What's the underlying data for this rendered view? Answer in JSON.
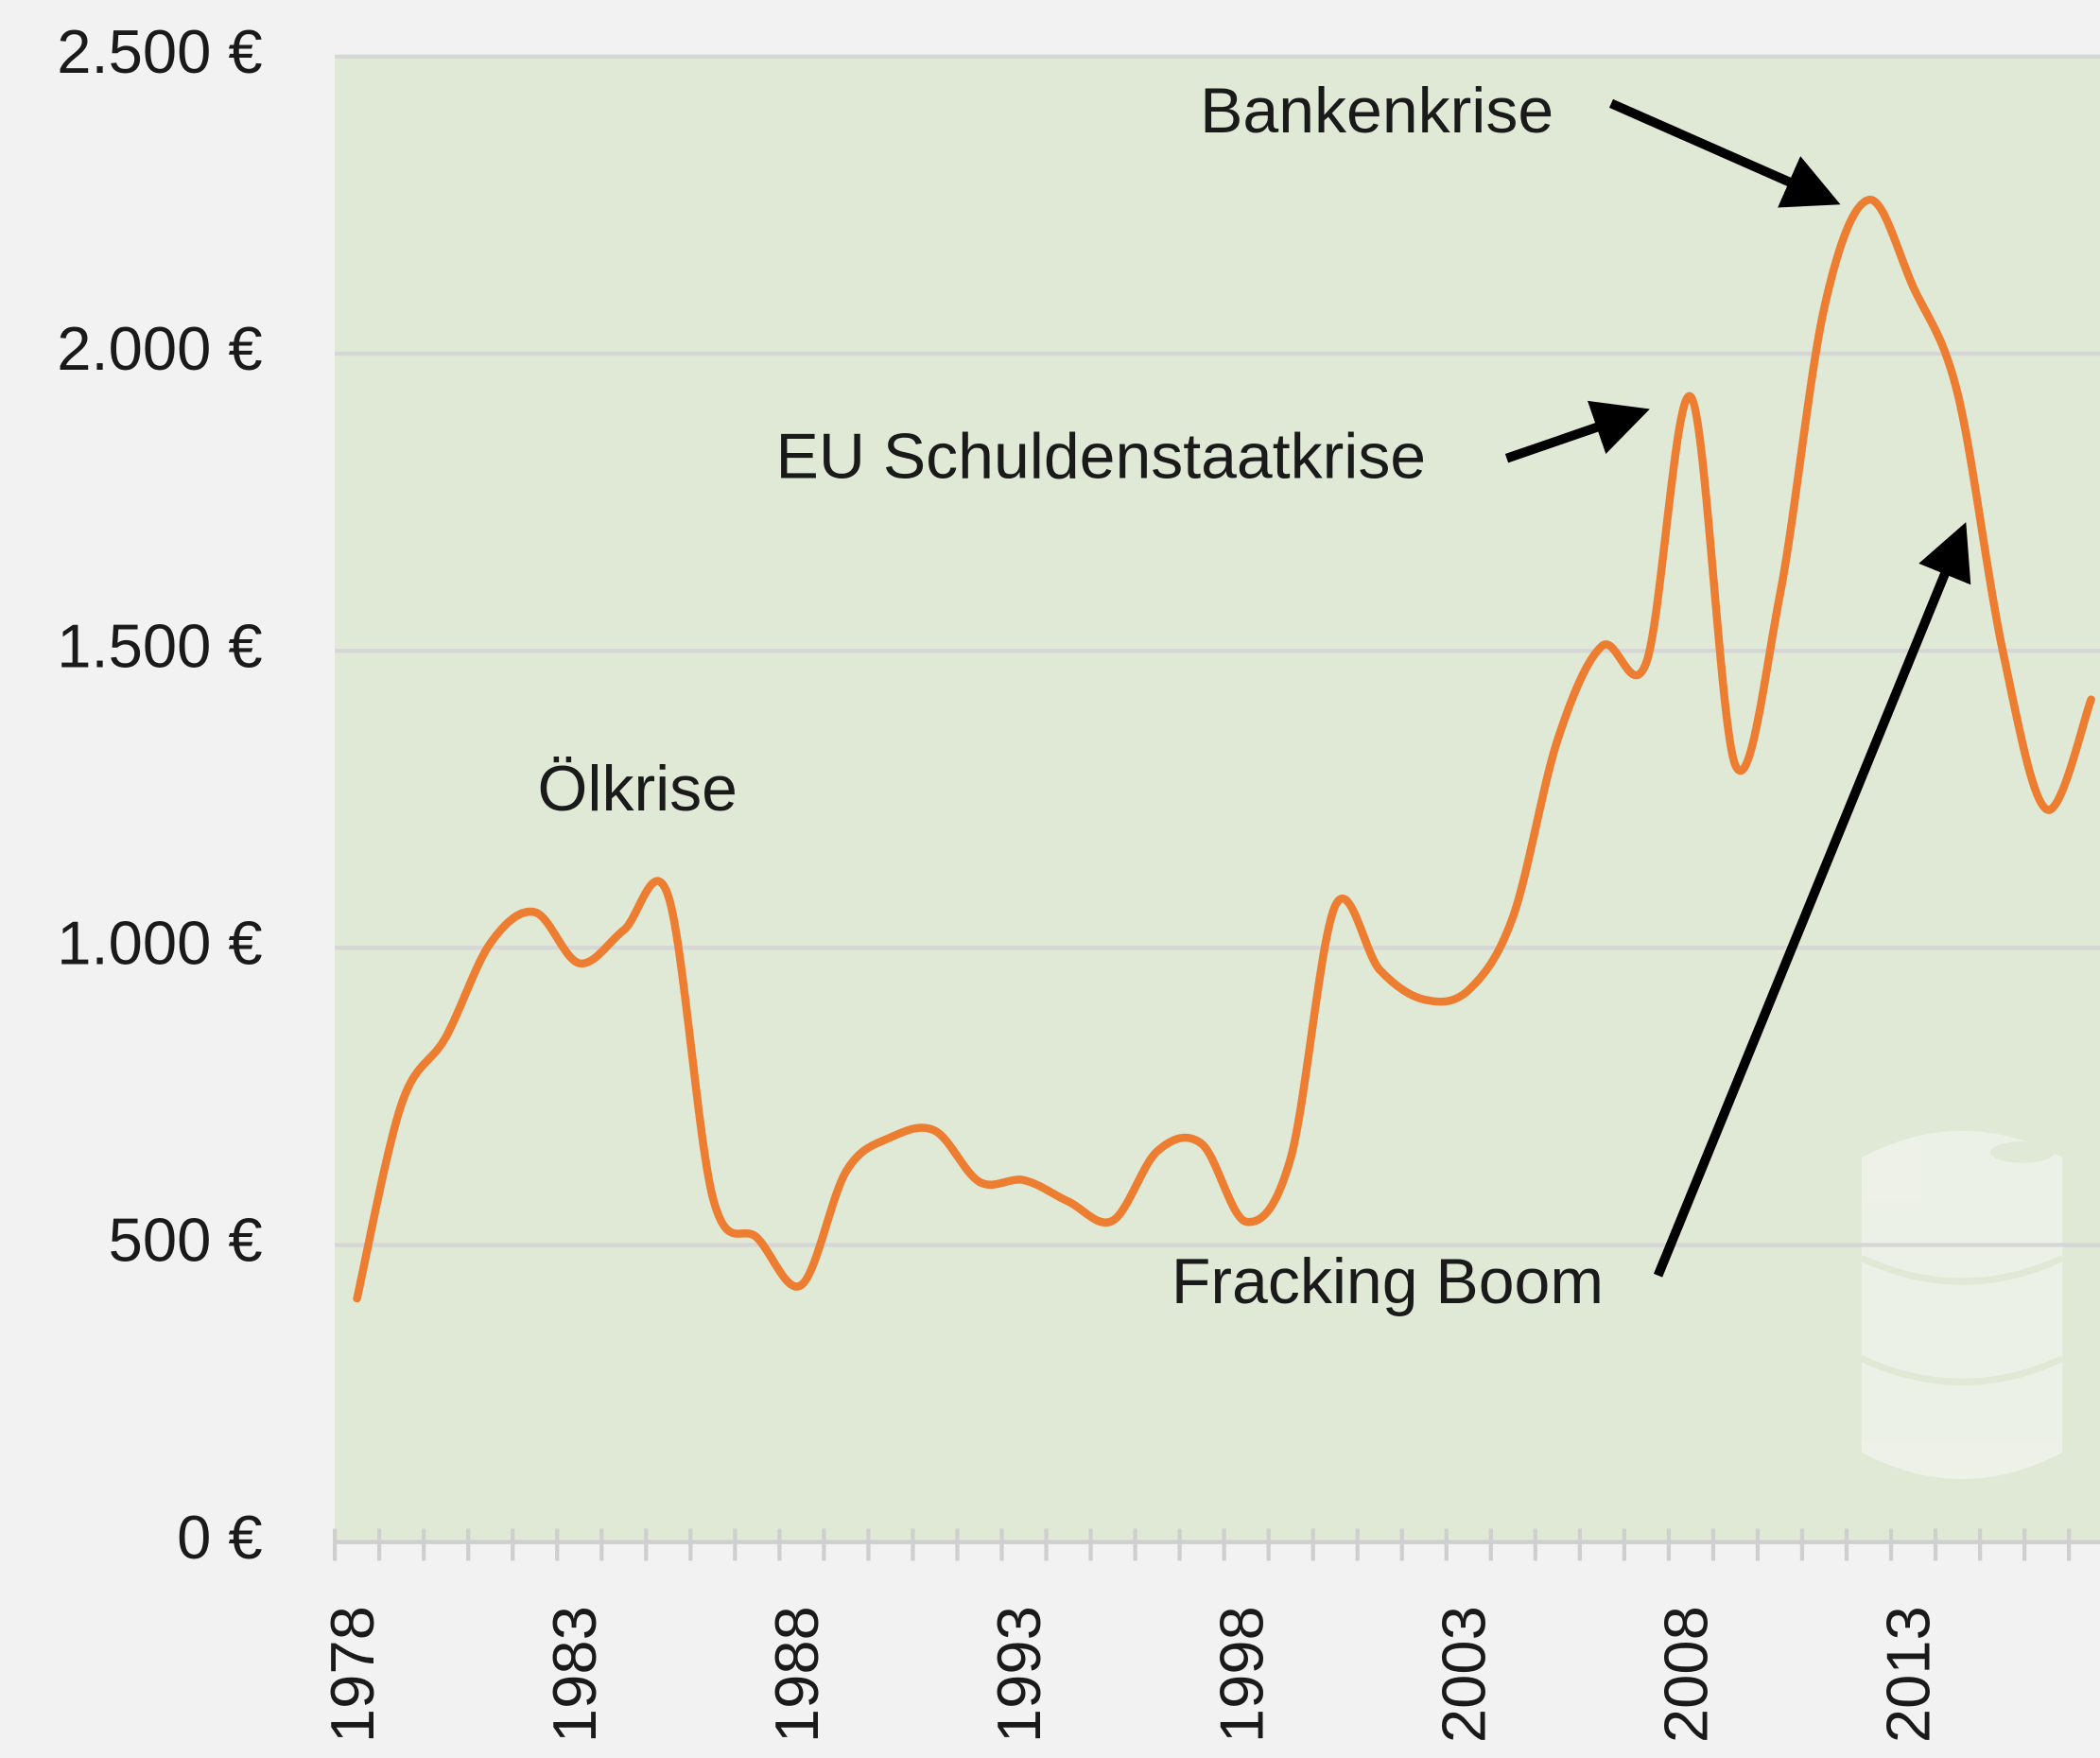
{
  "chart_data": {
    "type": "line",
    "categories": [
      "1978",
      null,
      null,
      null,
      null,
      "1983",
      null,
      null,
      null,
      null,
      "1988",
      null,
      null,
      null,
      null,
      "1993",
      null,
      null,
      null,
      null,
      "1998",
      null,
      null,
      null,
      null,
      "2003",
      null,
      null,
      null,
      null,
      "2008",
      null,
      null,
      null,
      null,
      "2013",
      null,
      null,
      null,
      null
    ],
    "series": [
      {
        "color": "#ed7d31",
        "values": [
          410,
          737,
          850,
          1008,
          1060,
          974,
          1030,
          1087,
          580,
          512,
          433,
          624,
          681,
          692,
          606,
          609,
          573,
          541,
          658,
          670,
          539,
          647,
          1071,
          963,
          913,
          929,
          1053,
          1350,
          1508,
          1481,
          1927,
          1307,
          1594,
          2078,
          2259,
          2112,
          1932,
          1504,
          1233,
          1418
        ]
      }
    ],
    "ylim": [
      0,
      2500
    ],
    "yticks": [
      {
        "value": 0,
        "label": "0 €"
      },
      {
        "value": 500,
        "label": "500 €"
      },
      {
        "value": 1000,
        "label": "1.000 €"
      },
      {
        "value": 1500,
        "label": "1.500 €"
      },
      {
        "value": 2000,
        "label": "2.000 €"
      },
      {
        "value": 2500,
        "label": "2.500 €"
      }
    ],
    "grid": true,
    "annotations": [
      "Bankenkrise",
      "EU Schuldenstaatkrise",
      "Ölkrise",
      "Fracking Boom"
    ]
  }
}
